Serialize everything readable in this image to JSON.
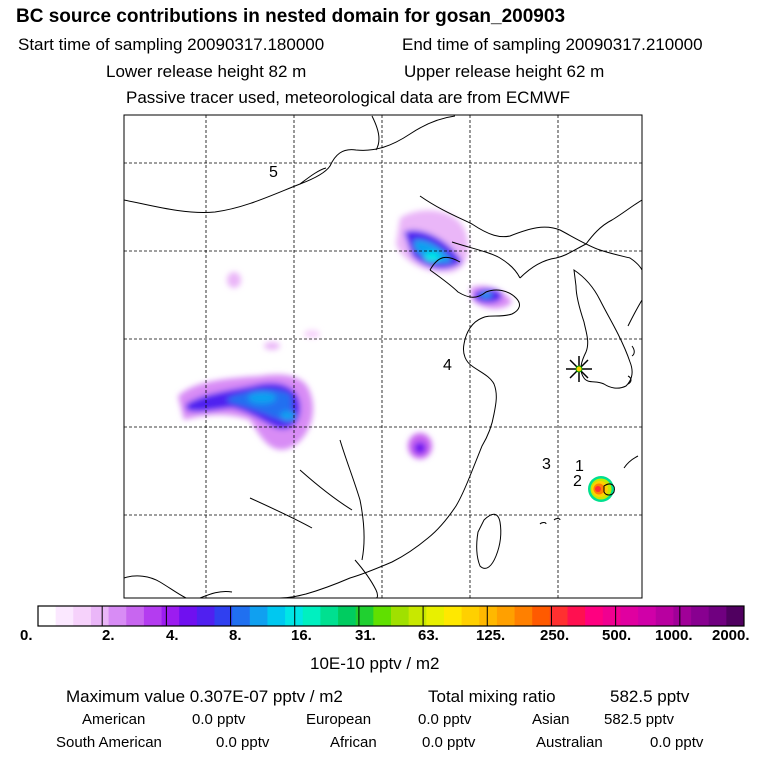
{
  "header": {
    "title": "BC  source contributions in nested domain for gosan_200903",
    "start_label": "Start time of sampling 20090317.180000",
    "end_label": "End time of sampling 20090317.210000",
    "lower_label": "Lower release height   82 m",
    "upper_label": "Upper release height   62 m",
    "note": "Passive tracer used, meteorological data are from ECMWF"
  },
  "map": {
    "labels": [
      "5",
      "4",
      "3",
      "1",
      "2"
    ]
  },
  "colorbar": {
    "tick_labels": [
      "0.",
      "2.",
      "4.",
      "8.",
      "16.",
      "31.",
      "63.",
      "125.",
      "250.",
      "500.",
      "1000.",
      "2000."
    ],
    "colors": [
      "#ffffff",
      "#fbe8ff",
      "#f6d2fb",
      "#eab6f8",
      "#d88cf5",
      "#c866f0",
      "#b43cf0",
      "#9c1cf0",
      "#7010f0",
      "#5020f0",
      "#3040f0",
      "#2070f0",
      "#10a0f0",
      "#00c8f0",
      "#00e6e6",
      "#00f0c0",
      "#00e090",
      "#00cc60",
      "#20d030",
      "#60e000",
      "#a0e000",
      "#c8e800",
      "#e8f000",
      "#ffe800",
      "#ffd000",
      "#ffb800",
      "#ffa000",
      "#ff8000",
      "#ff5a00",
      "#ff3030",
      "#ff1050",
      "#ff0080",
      "#f00090",
      "#e000a0",
      "#d000a8",
      "#b800a0",
      "#a00098",
      "#880090",
      "#700080",
      "#500060"
    ],
    "units": "10E-10 pptv / m2"
  },
  "stats": {
    "max_label": "Maximum value  0.307E-07 pptv / m2",
    "total_label": "Total mixing ratio",
    "total_value": "582.5 pptv",
    "regions": [
      {
        "name": "American",
        "value": "0.0 pptv"
      },
      {
        "name": "European",
        "value": "0.0 pptv"
      },
      {
        "name": "Asian",
        "value": "582.5 pptv"
      },
      {
        "name": "South American",
        "value": "0.0 pptv"
      },
      {
        "name": "African",
        "value": "0.0 pptv"
      },
      {
        "name": "Australian",
        "value": "0.0 pptv"
      }
    ]
  }
}
